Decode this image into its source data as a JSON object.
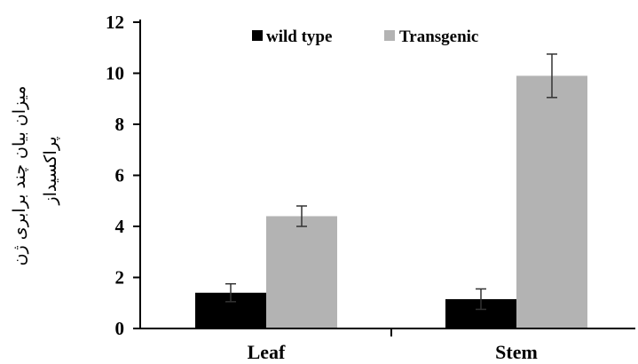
{
  "chart_data": {
    "type": "bar",
    "categories": [
      "Leaf",
      "Stem"
    ],
    "series": [
      {
        "name": "wild type",
        "color": "#000000",
        "values": [
          1.4,
          1.15
        ],
        "errors": [
          0.35,
          0.4
        ]
      },
      {
        "name": "Transgenic",
        "color": "#b3b3b3",
        "values": [
          4.4,
          9.9
        ],
        "errors": [
          0.4,
          0.85
        ]
      }
    ],
    "ylabel_lines": [
      "میزان بیان چند برابری ژن",
      "پراکسیداز"
    ],
    "ylim": [
      0,
      12
    ],
    "yticks": [
      0,
      2,
      4,
      6,
      8,
      10,
      12
    ],
    "legend_position": "top",
    "grid": false
  }
}
